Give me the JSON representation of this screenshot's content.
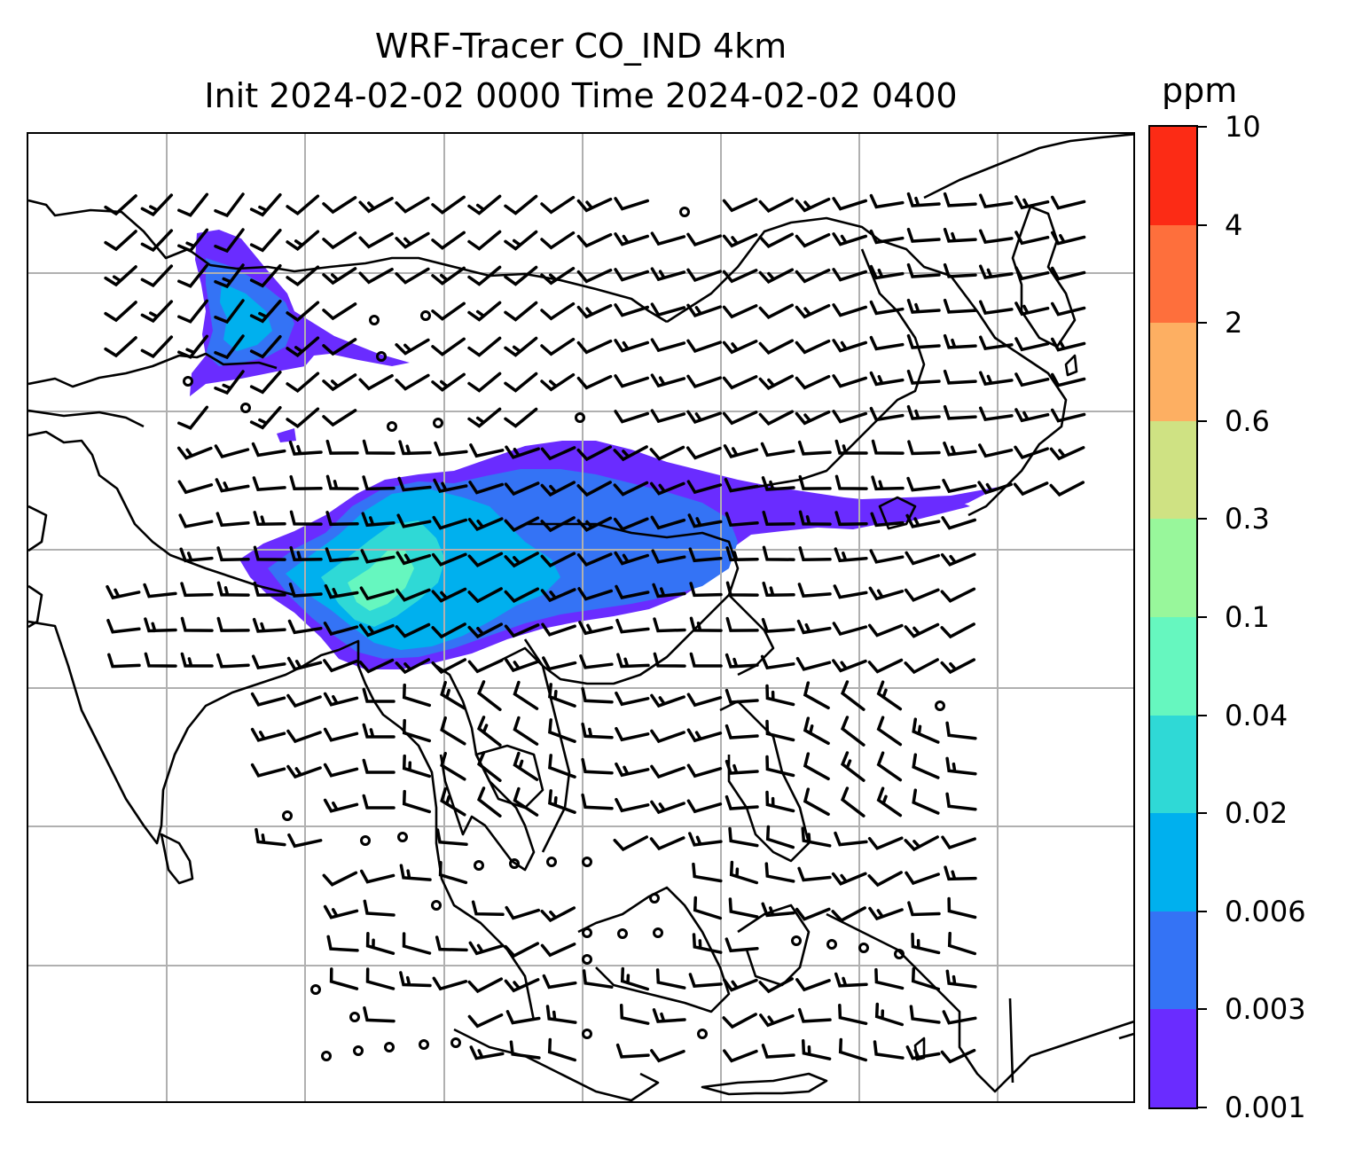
{
  "title_line1": "WRF-Tracer CO_IND 4km",
  "title_line2": "Init 2024-02-02 0000 Time 2024-02-02 0400",
  "colorbar": {
    "unit": "ppm",
    "levels": [
      "0.001",
      "0.003",
      "0.006",
      "0.02",
      "0.04",
      "0.1",
      "0.3",
      "0.6",
      "2",
      "4",
      "10"
    ],
    "colors": [
      "#6a2cff",
      "#3473f5",
      "#00b0ee",
      "#2fd9d6",
      "#66f7bf",
      "#98f79b",
      "#cfe283",
      "#fdaf62",
      "#fe6f3c",
      "#fc2b15"
    ]
  },
  "map": {
    "plume_colors": {
      "level1": "#6a2cff",
      "level2": "#3473f5",
      "level3": "#00b0ee",
      "level4": "#2fd9d6",
      "level5": "#66f7bf"
    },
    "gridline_color": "#b0b0b0",
    "coastline_color": "#000000",
    "calm_wind_markers": "circles",
    "wind_barbs": "black"
  }
}
